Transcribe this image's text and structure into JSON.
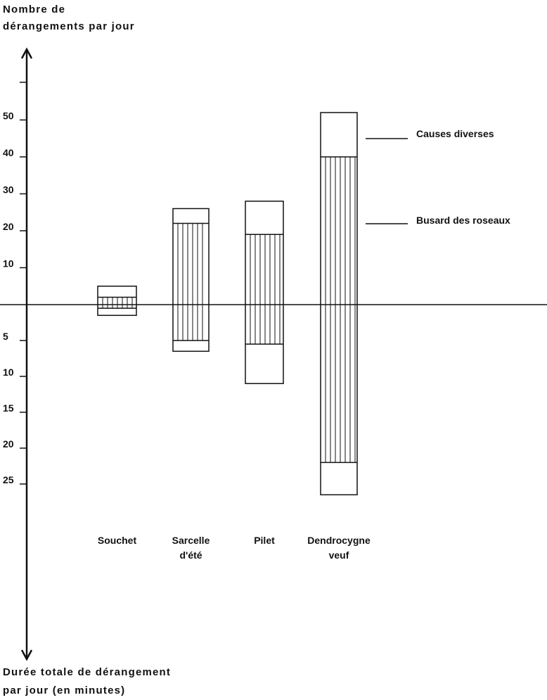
{
  "chart_data": {
    "type": "bar",
    "subtype": "diverging-stacked",
    "ylabel_top": [
      "Nombre de",
      "dérangements par jour"
    ],
    "ylabel_bottom": [
      "Durée totale de dérangement",
      "par jour (en minutes)"
    ],
    "yticks_top": [
      {
        "label": "50",
        "value": 50
      },
      {
        "label": "40",
        "value": 40
      },
      {
        "label": "30",
        "value": 30
      },
      {
        "label": "20",
        "value": 20
      },
      {
        "label": "10",
        "value": 10
      }
    ],
    "yticks_bottom": [
      {
        "label": "5",
        "value": 5
      },
      {
        "label": "10",
        "value": 10
      },
      {
        "label": "15",
        "value": 15
      },
      {
        "label": "20",
        "value": 20
      },
      {
        "label": "25",
        "value": 25
      }
    ],
    "categories": [
      {
        "lines": [
          "Souchet"
        ],
        "busard_count": 2,
        "total_count": 5,
        "busard_duration": 0.5,
        "total_duration": 1.5
      },
      {
        "lines": [
          "Sarcelle",
          "d'été"
        ],
        "busard_count": 22,
        "total_count": 26,
        "busard_duration": 5,
        "total_duration": 6.5
      },
      {
        "lines": [
          "Pilet"
        ],
        "busard_count": 19,
        "total_count": 28,
        "busard_duration": 5.5,
        "total_duration": 11
      },
      {
        "lines": [
          "Dendrocygne",
          "veuf"
        ],
        "busard_count": 40,
        "total_count": 52,
        "busard_duration": 22,
        "total_duration": 26.5
      }
    ],
    "legend": [
      {
        "key": "causes",
        "label": "Causes diverses",
        "pattern": "blank"
      },
      {
        "key": "busard",
        "label": "Busard des roseaux",
        "pattern": "vertical-stripes"
      }
    ]
  }
}
